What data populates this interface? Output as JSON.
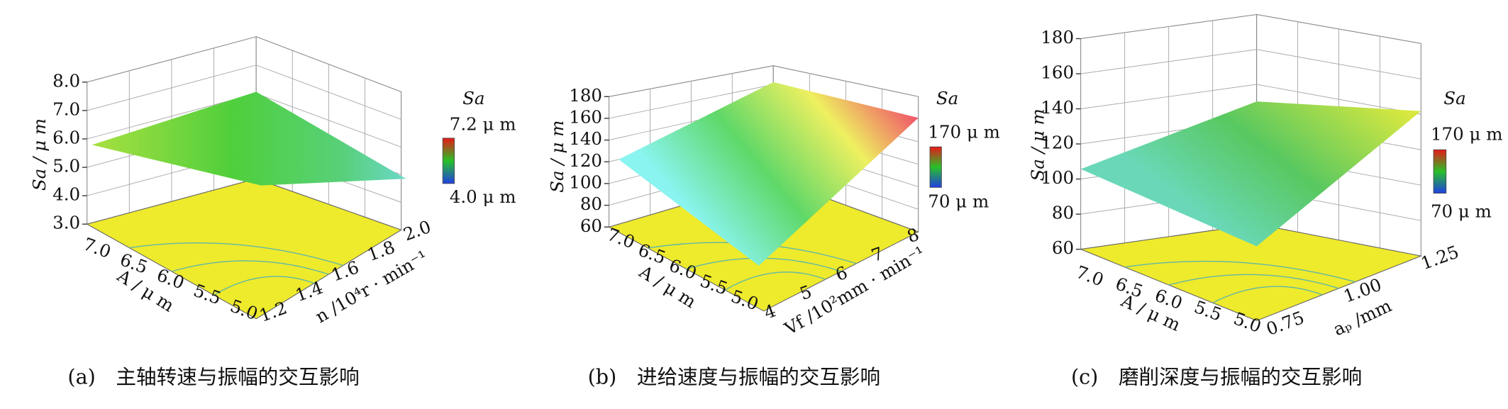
{
  "panels": [
    {
      "z_ticks": [
        "8.0",
        "7.0",
        "6.0",
        "5.0",
        "4.0",
        "3.0"
      ],
      "z_title": "Sa / μ m",
      "x_ticks": [
        "7.0",
        "6.5",
        "6.0",
        "5.5",
        "5.0"
      ],
      "x_title": "A / μ m",
      "y_ticks": [
        "1.2",
        "1.4",
        "1.6",
        "1.8",
        "2.0"
      ],
      "y_title": "n /10⁴r · min⁻¹",
      "colorbar": {
        "title": "Sa",
        "max": "7.2 μ m",
        "min": "4.0 μ m"
      },
      "caption": "(a)　主轴转速与振幅的交互影响"
    },
    {
      "z_ticks": [
        "180",
        "160",
        "140",
        "120",
        "100",
        "80",
        "60"
      ],
      "z_title": "Sa / μ m",
      "x_ticks": [
        "7.0",
        "6.5",
        "6.0",
        "5.5",
        "5.0"
      ],
      "x_title": "A / μ m",
      "y_ticks": [
        "4",
        "5",
        "6",
        "7",
        "8"
      ],
      "y_title": "Vf /10²mm · min⁻¹",
      "colorbar": {
        "title": "Sa",
        "max": "170 μ m",
        "min": "70 μ m"
      },
      "caption": "(b)　进给速度与振幅的交互影响"
    },
    {
      "z_ticks": [
        "180",
        "160",
        "140",
        "120",
        "100",
        "80",
        "60"
      ],
      "z_title": "Sa / μ m",
      "x_ticks": [
        "7.0",
        "6.5",
        "6.0",
        "5.5",
        "5.0"
      ],
      "x_title": "A / μ m",
      "y_ticks": [
        "0.75",
        "1.00",
        "1.25"
      ],
      "y_title": "aₚ /mm",
      "colorbar": {
        "title": "Sa",
        "max": "170 μ m",
        "min": "70 μ m"
      },
      "caption": "(c)　磨削深度与振幅的交互影响"
    }
  ]
}
